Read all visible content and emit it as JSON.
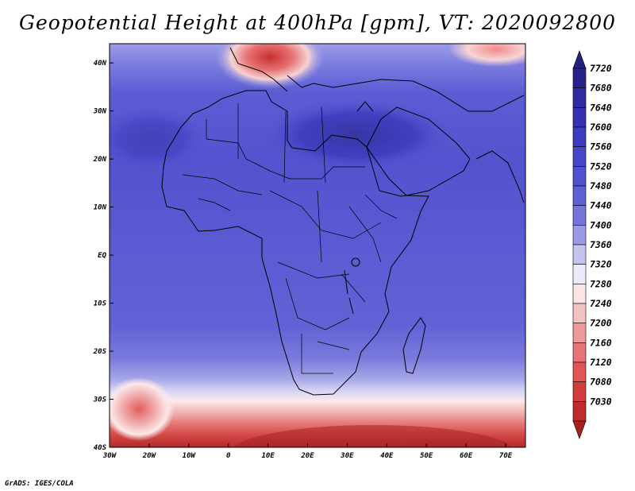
{
  "title": "Geopotential Height at 400hPa [gpm], VT: 2020092800",
  "credit": "GrADS: IGES/COLA",
  "map": {
    "variable": "Geopotential Height",
    "level": "400hPa",
    "units": "gpm",
    "valid_time": "2020092800",
    "lon_range": [
      -30,
      75
    ],
    "lat_range": [
      -40,
      44
    ],
    "lat_ticks": [
      {
        "value": 40,
        "label": "40N"
      },
      {
        "value": 30,
        "label": "30N"
      },
      {
        "value": 20,
        "label": "20N"
      },
      {
        "value": 10,
        "label": "10N"
      },
      {
        "value": 0,
        "label": "EQ"
      },
      {
        "value": -10,
        "label": "10S"
      },
      {
        "value": -20,
        "label": "20S"
      },
      {
        "value": -30,
        "label": "30S"
      },
      {
        "value": -40,
        "label": "40S"
      }
    ],
    "lon_ticks": [
      {
        "value": -30,
        "label": "30W"
      },
      {
        "value": -20,
        "label": "20W"
      },
      {
        "value": -10,
        "label": "10W"
      },
      {
        "value": 0,
        "label": "0"
      },
      {
        "value": 10,
        "label": "10E"
      },
      {
        "value": 20,
        "label": "20E"
      },
      {
        "value": 30,
        "label": "30E"
      },
      {
        "value": 40,
        "label": "40E"
      },
      {
        "value": 50,
        "label": "50E"
      },
      {
        "value": 60,
        "label": "60E"
      },
      {
        "value": 70,
        "label": "70E"
      }
    ]
  },
  "colorbar": {
    "levels": [
      {
        "label": "7720",
        "color": "#28238c"
      },
      {
        "label": "7680",
        "color": "#2e2aa0"
      },
      {
        "label": "7640",
        "color": "#3532b2"
      },
      {
        "label": "7600",
        "color": "#3d3bc0"
      },
      {
        "label": "7560",
        "color": "#4746c8"
      },
      {
        "label": "7520",
        "color": "#5251cf"
      },
      {
        "label": "7480",
        "color": "#5f5fd6"
      },
      {
        "label": "7440",
        "color": "#7575dd"
      },
      {
        "label": "7400",
        "color": "#9a9ae6"
      },
      {
        "label": "7360",
        "color": "#c4c4f0"
      },
      {
        "label": "7320",
        "color": "#ecebfa"
      },
      {
        "label": "7280",
        "color": "#fbe6e6"
      },
      {
        "label": "7240",
        "color": "#f5c2c2"
      },
      {
        "label": "7200",
        "color": "#ef9a9a"
      },
      {
        "label": "7160",
        "color": "#e87575"
      },
      {
        "label": "7120",
        "color": "#e05555"
      },
      {
        "label": "7080",
        "color": "#d33c3c"
      },
      {
        "label": "7030",
        "color": "#c02a2a"
      }
    ],
    "top_arrow_color": "#242080",
    "bottom_arrow_color": "#a82020"
  }
}
